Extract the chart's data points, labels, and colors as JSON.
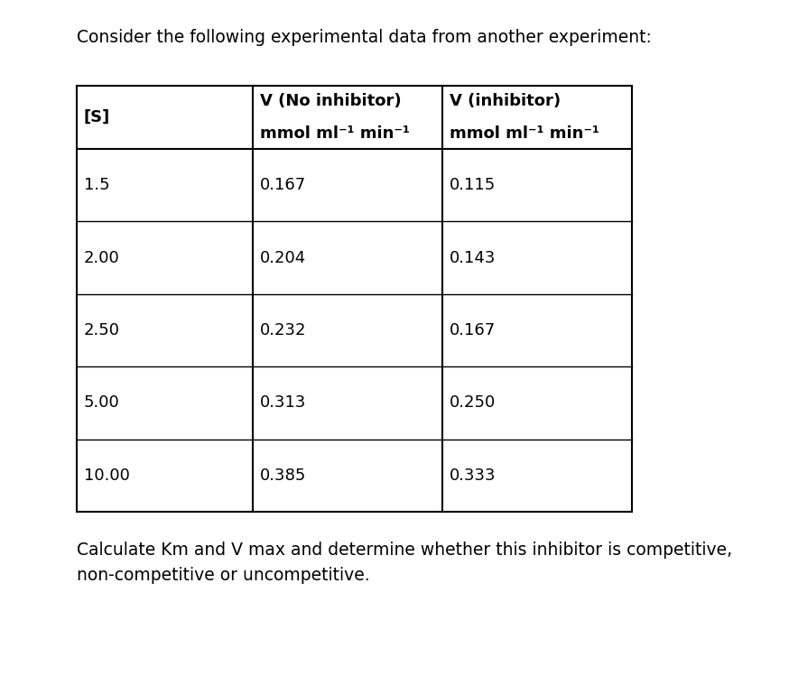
{
  "title": "Consider the following experimental data from another experiment:",
  "col_header_line1": [
    "[S]",
    "V (No inhibitor)",
    "V (inhibitor)"
  ],
  "col_header_line2": [
    "",
    "mmol ml⁻¹ min⁻¹",
    "mmol ml⁻¹ min⁻¹"
  ],
  "rows": [
    [
      "1.5",
      "0.167",
      "0.115"
    ],
    [
      "2.00",
      "0.204",
      "0.143"
    ],
    [
      "2.50",
      "0.232",
      "0.167"
    ],
    [
      "5.00",
      "0.313",
      "0.250"
    ],
    [
      "10.00",
      "0.385",
      "0.333"
    ]
  ],
  "footer_line1": "Calculate Km and V max and determine whether this inhibitor is competitive,",
  "footer_line2": "non-competitive or uncompetitive.",
  "background_color": "#ffffff",
  "text_color": "#000000",
  "font_size_title": 13.5,
  "font_size_body": 13,
  "font_size_header": 13,
  "font_size_footer": 13.5
}
